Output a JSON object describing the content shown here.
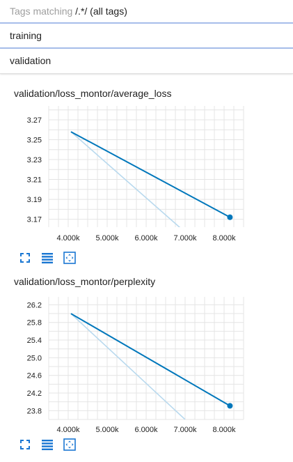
{
  "filter": {
    "prefix": "Tags matching ",
    "regex": "/.*/",
    "suffix": " (all tags)"
  },
  "runs": [
    {
      "label": "training"
    },
    {
      "label": "validation"
    }
  ],
  "colors": {
    "accent": "#0077bb",
    "smoothed_ghost": "#b8d9ee",
    "icon": "#1976d2",
    "run_divider": "#a6bdea"
  },
  "cards": [
    {
      "title": "validation/loss_montor/average_loss",
      "actions": [
        "fit-screen-icon",
        "list-icon",
        "fit-data-icon"
      ]
    },
    {
      "title": "validation/loss_montor/perplexity",
      "actions": [
        "fit-screen-icon",
        "list-icon",
        "fit-data-icon"
      ]
    }
  ],
  "chart_data": [
    {
      "type": "line",
      "title": "validation/loss_montor/average_loss",
      "x_ticks": [
        "4.000k",
        "5.000k",
        "6.000k",
        "7.000k",
        "8.000k"
      ],
      "x_tick_values": [
        4000,
        5000,
        6000,
        7000,
        8000
      ],
      "y_ticks": [
        "3.27",
        "3.25",
        "3.23",
        "3.21",
        "3.19",
        "3.17"
      ],
      "y_tick_values": [
        3.27,
        3.25,
        3.23,
        3.21,
        3.19,
        3.17
      ],
      "xlim": [
        3500,
        8500
      ],
      "ylim": [
        3.162,
        3.284
      ],
      "grid": true,
      "series": [
        {
          "role": "smoothed",
          "x": [
            4070,
            8150
          ],
          "y": [
            3.258,
            3.172
          ],
          "color": "#0077bb",
          "end_marker": true
        },
        {
          "role": "ghost",
          "x": [
            4070,
            7000
          ],
          "y": [
            3.258,
            3.157
          ],
          "color": "#b8d9ee",
          "end_marker": false
        }
      ]
    },
    {
      "type": "line",
      "title": "validation/loss_montor/perplexity",
      "x_ticks": [
        "4.000k",
        "5.000k",
        "6.000k",
        "7.000k",
        "8.000k"
      ],
      "x_tick_values": [
        4000,
        5000,
        6000,
        7000,
        8000
      ],
      "y_ticks": [
        "26.2",
        "25.8",
        "25.4",
        "25.0",
        "24.6",
        "24.2",
        "23.8"
      ],
      "y_tick_values": [
        26.2,
        25.8,
        25.4,
        25.0,
        24.6,
        24.2,
        23.8
      ],
      "xlim": [
        3500,
        8500
      ],
      "ylim": [
        23.6,
        26.38
      ],
      "grid": true,
      "series": [
        {
          "role": "smoothed",
          "x": [
            4070,
            8150
          ],
          "y": [
            26.0,
            23.91
          ],
          "color": "#0077bb",
          "end_marker": true
        },
        {
          "role": "ghost",
          "x": [
            4070,
            7000
          ],
          "y": [
            26.0,
            23.6
          ],
          "color": "#b8d9ee",
          "end_marker": false
        }
      ]
    }
  ]
}
